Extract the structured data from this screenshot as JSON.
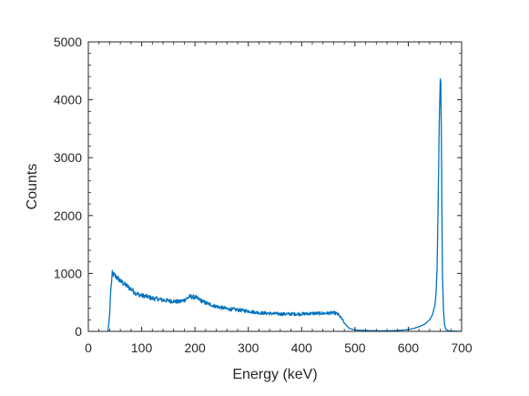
{
  "chart_data": {
    "type": "line",
    "title": "",
    "xlabel": "Energy (keV)",
    "ylabel": "Counts",
    "xlim": [
      0,
      700
    ],
    "ylim": [
      0,
      5000
    ],
    "xticks": [
      "0",
      "100",
      "200",
      "300",
      "400",
      "500",
      "600",
      "700"
    ],
    "yticks": [
      "0",
      "1000",
      "2000",
      "3000",
      "4000",
      "5000"
    ],
    "grid": false,
    "legend": "none",
    "line_color": "#0072BD",
    "series": [
      {
        "x": [
          37,
          40,
          42,
          45,
          50,
          55,
          60,
          70,
          80,
          90,
          100,
          110,
          120,
          130,
          140,
          150,
          160,
          170,
          180,
          190,
          200,
          210,
          220,
          230,
          240,
          250,
          260,
          270,
          280,
          290,
          300,
          320,
          340,
          360,
          380,
          400,
          420,
          440,
          460,
          465,
          470,
          475,
          480,
          485,
          490,
          500,
          520,
          540,
          560,
          580,
          600,
          610,
          620,
          630,
          640,
          645,
          650,
          652,
          654,
          656,
          658,
          660,
          661,
          662,
          663,
          664,
          666,
          668,
          670,
          675,
          680,
          690,
          700
        ],
        "y": [
          0,
          300,
          700,
          1000,
          960,
          920,
          870,
          800,
          730,
          650,
          620,
          600,
          570,
          560,
          540,
          530,
          520,
          510,
          540,
          600,
          590,
          540,
          490,
          460,
          430,
          410,
          390,
          380,
          370,
          360,
          350,
          320,
          310,
          300,
          300,
          300,
          310,
          310,
          320,
          310,
          280,
          220,
          150,
          90,
          50,
          25,
          15,
          10,
          10,
          15,
          30,
          50,
          80,
          120,
          200,
          280,
          450,
          650,
          1100,
          2200,
          3600,
          4360,
          4300,
          3400,
          2100,
          1000,
          350,
          120,
          40,
          10,
          5,
          3,
          2
        ]
      }
    ]
  }
}
